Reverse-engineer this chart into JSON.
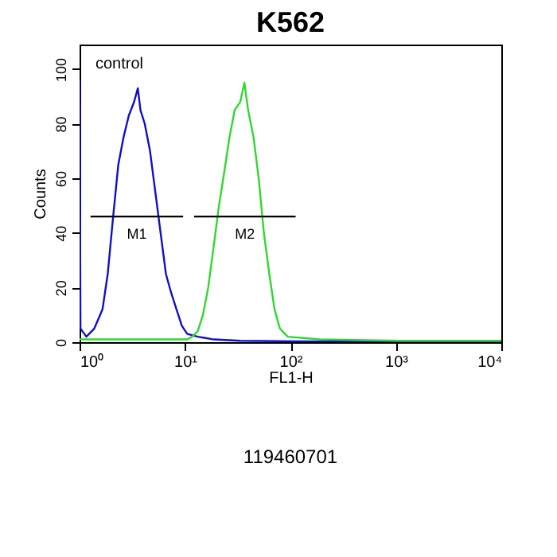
{
  "chart_data": {
    "type": "line",
    "title": "K562",
    "xlabel": "FL1-H",
    "ylabel": "Counts",
    "log": "x",
    "xlim": [
      1,
      10000
    ],
    "xticks": [
      {
        "value": 1,
        "label": "10⁰"
      },
      {
        "value": 10,
        "label": "10¹"
      },
      {
        "value": 100,
        "label": "10²"
      },
      {
        "value": 1000,
        "label": "10³"
      },
      {
        "value": 10000,
        "label": "10⁴"
      }
    ],
    "ylim": [
      0,
      109
    ],
    "yticks": [
      0,
      20,
      40,
      60,
      80,
      100
    ],
    "grid": false,
    "marker": "none",
    "line_style": "solid",
    "series": [
      {
        "name": "control",
        "color": "#1010c8",
        "x": [
          1,
          1.02,
          1.16,
          1.38,
          1.65,
          1.85,
          2.07,
          2.33,
          2.61,
          2.93,
          3.29,
          3.57,
          3.78,
          4.15,
          4.66,
          5.23,
          5.87,
          6.59,
          7.4,
          8.31,
          9.33,
          10.5,
          13.2,
          18.7,
          33.4,
          106,
          334,
          10000
        ],
        "values": [
          96,
          5,
          2,
          5,
          12,
          25,
          45,
          65,
          75,
          83,
          88,
          93,
          85,
          80,
          70,
          55,
          40,
          25,
          18,
          12,
          6,
          3,
          2,
          1,
          0.5,
          0.3,
          0.2,
          0
        ]
      },
      {
        "color": "#30d830",
        "x": [
          1,
          3.29,
          10.5,
          11.7,
          13.2,
          14.8,
          16.6,
          18.7,
          21,
          23.5,
          26.4,
          29.6,
          33.4,
          36.6,
          39.7,
          44.7,
          50,
          56,
          63,
          70.7,
          79.4,
          94.3,
          189,
          1070,
          10000
        ],
        "values": [
          1,
          1,
          1,
          2,
          4,
          10,
          20,
          35,
          50,
          62,
          75,
          85,
          88,
          95,
          85,
          75,
          60,
          40,
          25,
          12,
          5,
          2,
          1,
          0.5,
          0.5
        ]
      },
      {
        "color": "#000000",
        "x": [
          1.27,
          9.6
        ],
        "values": [
          46,
          46
        ]
      },
      {
        "color": "#000000",
        "x": [
          12.2,
          112
        ],
        "values": [
          46,
          46
        ]
      }
    ],
    "annotations": [
      {
        "text": "M1",
        "x": 3.5,
        "y": 46
      },
      {
        "text": "M2",
        "x": 37,
        "y": 46
      },
      "119460701"
    ]
  }
}
